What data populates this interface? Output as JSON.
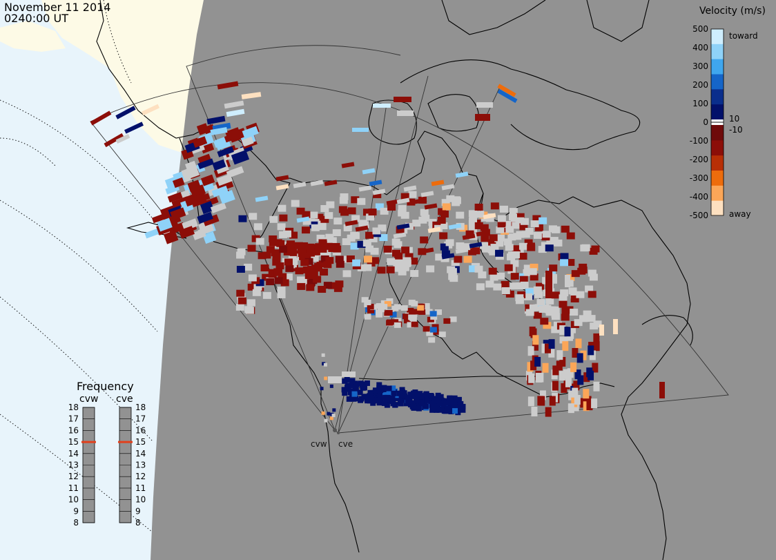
{
  "header": {
    "date": "November 11 2014",
    "time": "0240:00 UT"
  },
  "velocity_legend": {
    "title": "Velocity (m/s)",
    "ticks": [
      "500",
      "400",
      "300",
      "200",
      "100",
      "0",
      "-100",
      "-200",
      "-300",
      "-400",
      "-500"
    ],
    "small_ticks": [
      "10",
      "-10"
    ],
    "toward_label": "toward",
    "away_label": "away",
    "colors_top_to_bottom": [
      "#cfeefe",
      "#8fd2f8",
      "#3fa6ee",
      "#1565c8",
      "#0a2e8c",
      "#02106a"
    ],
    "colors_bottom_to_top": [
      "#fde0c0",
      "#fba658",
      "#ed6c0c",
      "#b82f06",
      "#8c0e08",
      "#6e0a0a"
    ]
  },
  "frequency_panel": {
    "title": "Frequency",
    "radars": [
      "cvw",
      "cve"
    ],
    "ticks": [
      "18",
      "17",
      "16",
      "15",
      "14",
      "13",
      "12",
      "11",
      "10",
      "9",
      "8"
    ],
    "selected_frequency": 15,
    "marker_color": "#e2401c"
  },
  "radar_sites": [
    {
      "code": "cvw",
      "label": "cvw"
    },
    {
      "code": "cve",
      "label": "cve"
    }
  ],
  "colors": {
    "land": "#fdfae6",
    "ocean": "#e8f4fb",
    "night_shade": "#929292",
    "ground_scatter": "#cccccc"
  }
}
